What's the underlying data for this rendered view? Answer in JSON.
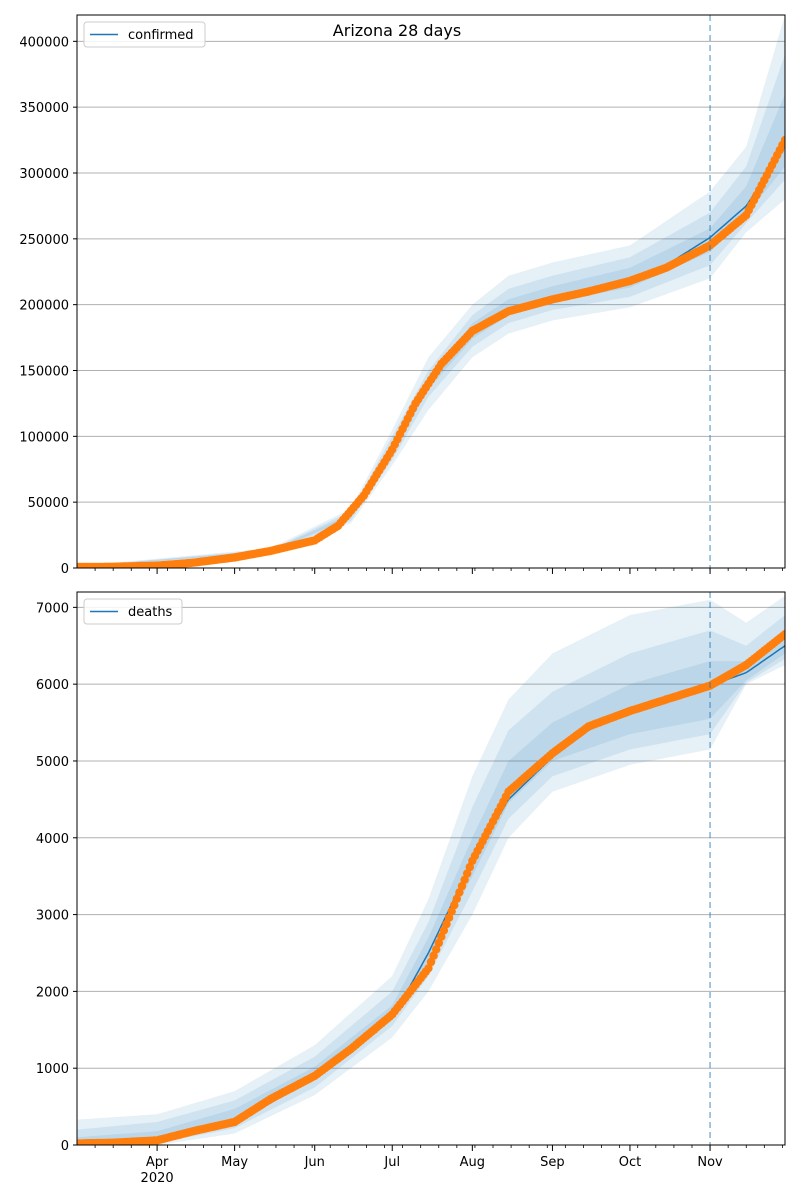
{
  "title": "Arizona 28 days",
  "colors": {
    "model_line": "#1f77b4",
    "band": "#1f77b4",
    "observed": "#ff7f0e",
    "grid": "#b0b0b0",
    "forecast_line": "#1f77b4"
  },
  "x_axis": {
    "range": [
      "2020-03-01",
      "2020-11-30"
    ],
    "month_ticks": [
      "Apr",
      "May",
      "Jun",
      "Jul",
      "Aug",
      "Sep",
      "Oct",
      "Nov"
    ],
    "month_tick_dates": [
      "2020-04-01",
      "2020-05-01",
      "2020-06-01",
      "2020-07-01",
      "2020-08-01",
      "2020-09-01",
      "2020-10-01",
      "2020-11-01"
    ],
    "year_label": "2020",
    "forecast_start": "2020-11-01"
  },
  "chart_data": [
    {
      "type": "line",
      "legend": "confirmed",
      "legend_position": "top-left",
      "grid": "horizontal",
      "ylim": [
        0,
        420000
      ],
      "yticks": [
        0,
        50000,
        100000,
        150000,
        200000,
        250000,
        300000,
        350000,
        400000
      ],
      "ytick_labels": [
        "0",
        "50000",
        "100000",
        "150000",
        "200000",
        "250000",
        "300000",
        "350000",
        "400000"
      ],
      "series": [
        {
          "name": "confirmed",
          "dates": [
            "2020-03-01",
            "2020-03-15",
            "2020-04-01",
            "2020-04-15",
            "2020-05-01",
            "2020-05-15",
            "2020-06-01",
            "2020-06-10",
            "2020-06-20",
            "2020-07-01",
            "2020-07-10",
            "2020-07-20",
            "2020-08-01",
            "2020-08-15",
            "2020-09-01",
            "2020-09-15",
            "2020-10-01",
            "2020-10-15",
            "2020-11-01",
            "2020-11-15",
            "2020-11-30"
          ],
          "values": [
            800,
            900,
            1800,
            4000,
            8000,
            13000,
            21000,
            32000,
            55000,
            90000,
            125000,
            155000,
            180000,
            195000,
            205000,
            212000,
            220000,
            230000,
            251000,
            275000,
            320000
          ]
        }
      ],
      "observed_dates": [
        "2020-03-01",
        "2020-03-15",
        "2020-04-01",
        "2020-04-15",
        "2020-05-01",
        "2020-05-15",
        "2020-06-01",
        "2020-06-10",
        "2020-06-20",
        "2020-07-01",
        "2020-07-10",
        "2020-07-20",
        "2020-08-01",
        "2020-08-15",
        "2020-09-01",
        "2020-09-15",
        "2020-10-01",
        "2020-10-15",
        "2020-11-01",
        "2020-11-15",
        "2020-11-30"
      ],
      "observed_values": [
        800,
        900,
        1800,
        4000,
        8000,
        13000,
        21000,
        32000,
        55000,
        90000,
        125000,
        155000,
        180000,
        195000,
        204000,
        210000,
        218000,
        228000,
        245000,
        268000,
        325000
      ],
      "band_dates": [
        "2020-03-01",
        "2020-05-15",
        "2020-06-15",
        "2020-07-01",
        "2020-07-15",
        "2020-08-01",
        "2020-08-15",
        "2020-09-01",
        "2020-10-01",
        "2020-11-01",
        "2020-11-15",
        "2020-11-30"
      ],
      "bands": [
        {
          "upper": [
            1500,
            15000,
            45000,
            105000,
            160000,
            200000,
            222000,
            232000,
            245000,
            286000,
            320000,
            420000
          ],
          "lower": [
            0,
            11000,
            34000,
            78000,
            120000,
            160000,
            178000,
            188000,
            198000,
            220000,
            255000,
            280000
          ]
        },
        {
          "upper": [
            1200,
            14000,
            43000,
            100000,
            150000,
            192000,
            212000,
            222000,
            236000,
            270000,
            305000,
            390000
          ],
          "lower": [
            0,
            12000,
            36000,
            82000,
            130000,
            168000,
            186000,
            196000,
            206000,
            230000,
            262000,
            295000
          ]
        },
        {
          "upper": [
            1000,
            13500,
            41000,
            95000,
            142000,
            186000,
            204000,
            214000,
            228000,
            258000,
            290000,
            360000
          ],
          "lower": [
            200,
            12500,
            38000,
            86000,
            136000,
            174000,
            192000,
            202000,
            213000,
            240000,
            268000,
            305000
          ]
        }
      ]
    },
    {
      "type": "line",
      "legend": "deaths",
      "legend_position": "top-left",
      "grid": "horizontal",
      "ylim": [
        0,
        7200
      ],
      "yticks": [
        0,
        1000,
        2000,
        3000,
        4000,
        5000,
        6000,
        7000
      ],
      "ytick_labels": [
        "0",
        "1000",
        "2000",
        "3000",
        "4000",
        "5000",
        "6000",
        "7000"
      ],
      "series": [
        {
          "name": "deaths",
          "dates": [
            "2020-03-01",
            "2020-03-15",
            "2020-04-01",
            "2020-04-15",
            "2020-05-01",
            "2020-05-15",
            "2020-06-01",
            "2020-06-15",
            "2020-07-01",
            "2020-07-15",
            "2020-08-01",
            "2020-08-15",
            "2020-09-01",
            "2020-09-15",
            "2020-10-01",
            "2020-10-15",
            "2020-11-01",
            "2020-11-15",
            "2020-11-30"
          ],
          "values": [
            20,
            30,
            80,
            180,
            320,
            550,
            900,
            1200,
            1650,
            2500,
            3700,
            4500,
            5050,
            5400,
            5650,
            5820,
            5980,
            6150,
            6500
          ]
        }
      ],
      "observed_dates": [
        "2020-03-01",
        "2020-03-15",
        "2020-04-01",
        "2020-04-15",
        "2020-05-01",
        "2020-05-15",
        "2020-06-01",
        "2020-06-15",
        "2020-07-01",
        "2020-07-15",
        "2020-08-01",
        "2020-08-15",
        "2020-09-01",
        "2020-09-15",
        "2020-10-01",
        "2020-10-15",
        "2020-11-01",
        "2020-11-15",
        "2020-11-30"
      ],
      "observed_values": [
        20,
        30,
        60,
        180,
        300,
        600,
        900,
        1250,
        1700,
        2300,
        3700,
        4600,
        5100,
        5450,
        5650,
        5800,
        5980,
        6250,
        6650
      ],
      "band_dates": [
        "2020-03-01",
        "2020-04-01",
        "2020-05-01",
        "2020-06-01",
        "2020-07-01",
        "2020-07-15",
        "2020-08-01",
        "2020-08-15",
        "2020-09-01",
        "2020-10-01",
        "2020-11-01",
        "2020-11-15",
        "2020-11-30"
      ],
      "bands": [
        {
          "upper": [
            330,
            400,
            700,
            1300,
            2200,
            3200,
            4800,
            5800,
            6400,
            6900,
            7100,
            6800,
            7150
          ],
          "lower": [
            0,
            0,
            150,
            650,
            1400,
            2000,
            3000,
            4000,
            4600,
            4950,
            5150,
            6000,
            6250
          ]
        },
        {
          "upper": [
            200,
            300,
            580,
            1150,
            2000,
            2900,
            4400,
            5400,
            5900,
            6400,
            6700,
            6500,
            6900
          ],
          "lower": [
            0,
            20,
            220,
            750,
            1550,
            2200,
            3300,
            4250,
            4800,
            5150,
            5350,
            6020,
            6330
          ]
        },
        {
          "upper": [
            100,
            180,
            470,
            1020,
            1820,
            2700,
            4000,
            5000,
            5500,
            6000,
            6300,
            6300,
            6650
          ],
          "lower": [
            0,
            50,
            300,
            850,
            1680,
            2400,
            3500,
            4450,
            5000,
            5350,
            5550,
            6050,
            6400
          ]
        }
      ]
    }
  ]
}
